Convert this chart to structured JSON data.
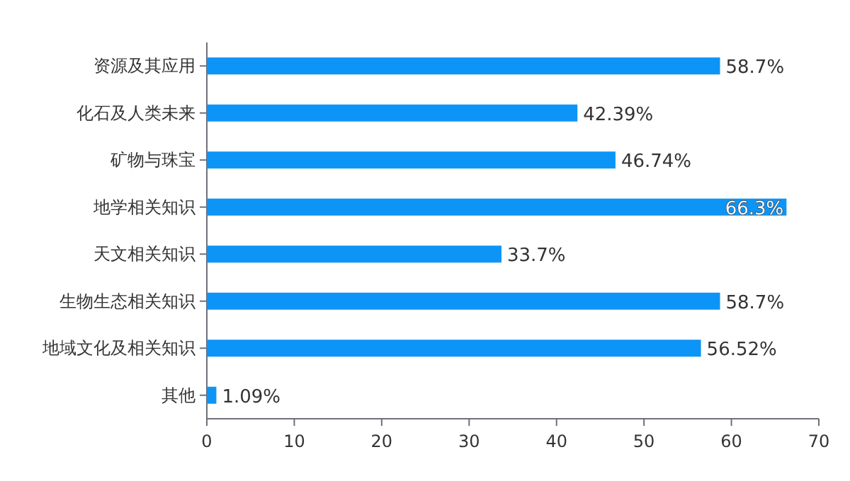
{
  "chart_data": {
    "type": "bar",
    "orientation": "horizontal",
    "categories": [
      "资源及其应用",
      "化石及人类未来",
      "矿物与珠宝",
      "地学相关知识",
      "天文相关知识",
      "生物生态相关知识",
      "地域文化及相关知识",
      "其他"
    ],
    "values": [
      58.7,
      42.39,
      46.74,
      66.3,
      33.7,
      58.7,
      56.52,
      1.09
    ],
    "value_labels": [
      "58.7%",
      "42.39%",
      "46.74%",
      "66.3%",
      "33.7%",
      "58.7%",
      "56.52%",
      "1.09%"
    ],
    "color": "#0d94f7",
    "xlim": [
      0,
      70
    ],
    "xticks": [
      0,
      10,
      20,
      30,
      40,
      50,
      60,
      70
    ],
    "grid": false
  }
}
